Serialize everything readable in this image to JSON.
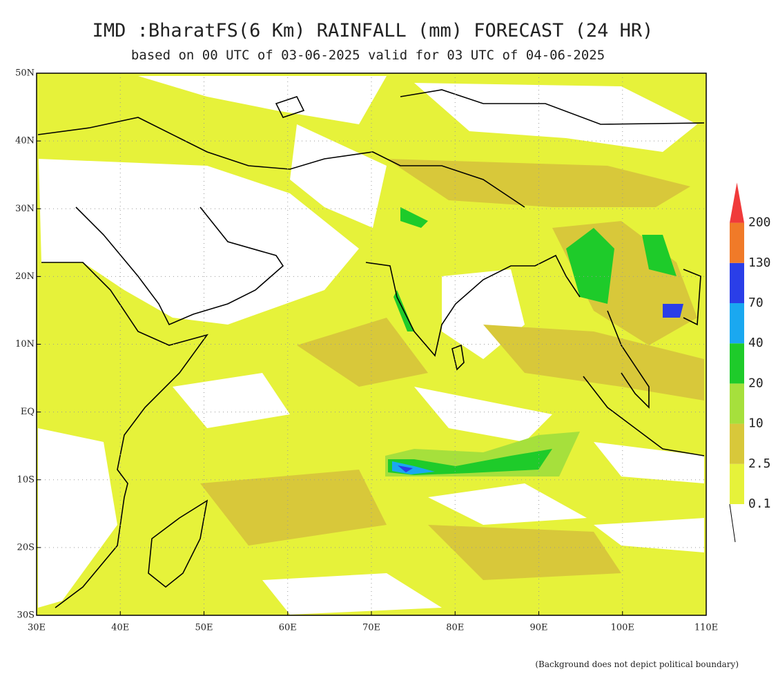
{
  "title": "IMD :BharatFS(6 Km) RAINFALL (mm) FORECAST (24 HR)",
  "subtitle": "based on 00 UTC of 03-06-2025 valid for 03 UTC of 04-06-2025",
  "map": {
    "lon_ticks": [
      {
        "value": 30,
        "label": "30E"
      },
      {
        "value": 40,
        "label": "40E"
      },
      {
        "value": 50,
        "label": "50E"
      },
      {
        "value": 60,
        "label": "60E"
      },
      {
        "value": 70,
        "label": "70E"
      },
      {
        "value": 80,
        "label": "80E"
      },
      {
        "value": 90,
        "label": "90E"
      },
      {
        "value": 100,
        "label": "100E"
      },
      {
        "value": 110,
        "label": "110E"
      }
    ],
    "lat_ticks": [
      {
        "value": 50,
        "label": "50N"
      },
      {
        "value": 40,
        "label": "40N"
      },
      {
        "value": 30,
        "label": "30N"
      },
      {
        "value": 20,
        "label": "20N"
      },
      {
        "value": 10,
        "label": "10N"
      },
      {
        "value": 0,
        "label": "EQ"
      },
      {
        "value": -10,
        "label": "10S"
      },
      {
        "value": -20,
        "label": "20S"
      },
      {
        "value": -30,
        "label": "30S"
      }
    ]
  },
  "legend": {
    "levels": [
      0.1,
      2.5,
      10,
      20,
      40,
      70,
      130,
      200
    ],
    "colors": [
      "#e6f23a",
      "#d8c83a",
      "#a6e03c",
      "#1ecb2a",
      "#1aa8f0",
      "#2a3ee8",
      "#f07a28",
      "#f03a3a"
    ]
  },
  "footnote": "(Background does not depict political boundary)"
}
